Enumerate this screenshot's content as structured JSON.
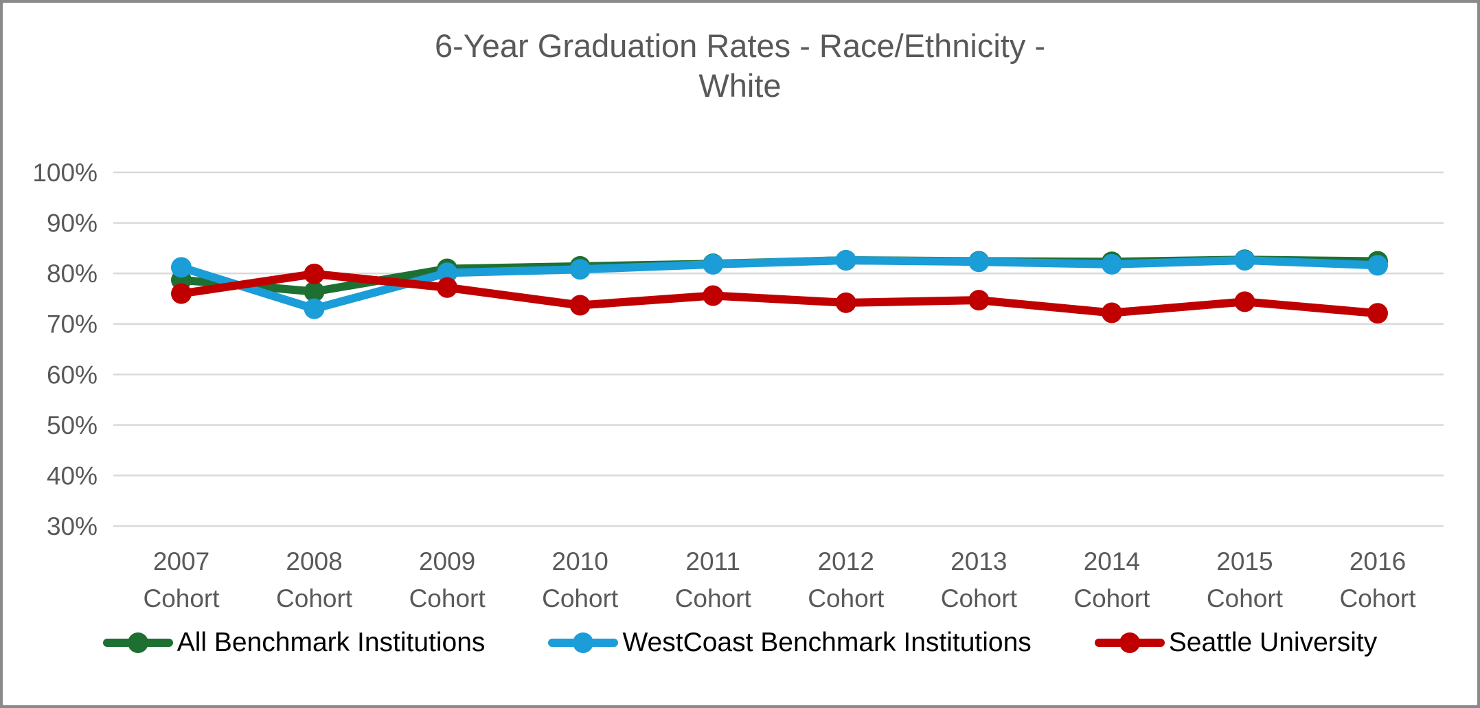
{
  "title": {
    "line1": "6-Year Graduation Rates - Race/Ethnicity -",
    "line2": "White"
  },
  "chart_data": {
    "type": "line",
    "title": "6-Year Graduation Rates - Race/Ethnicity - White",
    "categories": [
      "2007",
      "2008",
      "2009",
      "2010",
      "2011",
      "2012",
      "2013",
      "2014",
      "2015",
      "2016"
    ],
    "category_sublabel": "Cohort",
    "xlabel": "",
    "ylabel": "",
    "ylim": [
      30,
      100
    ],
    "y_ticks": [
      {
        "value": 100,
        "label": "100%"
      },
      {
        "value": 90,
        "label": "90%"
      },
      {
        "value": 80,
        "label": "80%"
      },
      {
        "value": 70,
        "label": "70%"
      },
      {
        "value": 60,
        "label": "60%"
      },
      {
        "value": 50,
        "label": "50%"
      },
      {
        "value": 40,
        "label": "40%"
      },
      {
        "value": 30,
        "label": "30%"
      }
    ],
    "grid": true,
    "legend_position": "bottom",
    "series": [
      {
        "name": "All Benchmark Institutions",
        "color": "#1E7032",
        "values": [
          78.7,
          76.4,
          80.9,
          81.4,
          81.9,
          82.6,
          82.4,
          82.3,
          82.7,
          82.4
        ]
      },
      {
        "name": "WestCoast Benchmark Institutions",
        "color": "#1B9DD8",
        "values": [
          81.2,
          73.0,
          80.1,
          80.8,
          81.8,
          82.6,
          82.3,
          81.8,
          82.6,
          81.6
        ]
      },
      {
        "name": "Seattle University",
        "color": "#C00000",
        "values": [
          76.0,
          79.9,
          77.2,
          73.7,
          75.6,
          74.2,
          74.7,
          72.2,
          74.4,
          72.1
        ]
      }
    ]
  },
  "colors": {
    "title_text": "#595959",
    "axis_text": "#595959",
    "gridline": "#D9D9D9",
    "legend_text": "#000000",
    "frame_border": "#8A8A8A",
    "background": "#FFFFFF"
  }
}
